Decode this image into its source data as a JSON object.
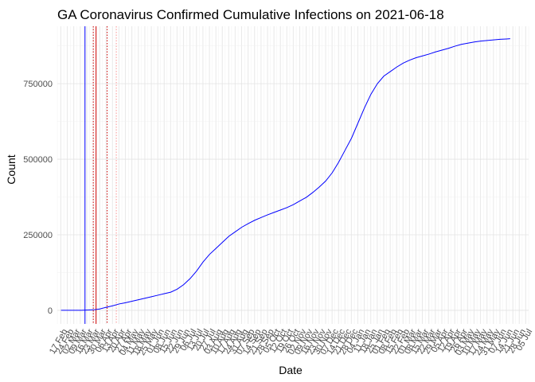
{
  "chart_data": {
    "type": "line",
    "title": "GA Coronavirus Confirmed Cumulative Infections on 2021-06-18",
    "xlabel": "Date",
    "ylabel": "Count",
    "x_range": [
      "2020-02-13",
      "2021-07-08"
    ],
    "ylim": [
      -45000,
      940000
    ],
    "y_ticks": [
      0,
      250000,
      500000,
      750000
    ],
    "y_tick_labels": [
      "0",
      "250000",
      "500000",
      "750000"
    ],
    "x_tick_dates": [
      "2020-02-17",
      "2020-02-24",
      "2020-03-02",
      "2020-03-09",
      "2020-03-16",
      "2020-03-23",
      "2020-03-30",
      "2020-04-06",
      "2020-04-13",
      "2020-04-20",
      "2020-04-27",
      "2020-05-04",
      "2020-05-11",
      "2020-05-18",
      "2020-05-25",
      "2020-06-01",
      "2020-06-08",
      "2020-06-15",
      "2020-06-22",
      "2020-06-29",
      "2020-07-06",
      "2020-07-13",
      "2020-07-20",
      "2020-07-27",
      "2020-08-03",
      "2020-08-10",
      "2020-08-17",
      "2020-08-24",
      "2020-08-31",
      "2020-09-07",
      "2020-09-14",
      "2020-09-21",
      "2020-09-28",
      "2020-10-05",
      "2020-10-12",
      "2020-10-19",
      "2020-10-26",
      "2020-11-02",
      "2020-11-09",
      "2020-11-16",
      "2020-11-23",
      "2020-11-30",
      "2020-12-07",
      "2020-12-14",
      "2020-12-21",
      "2020-12-28",
      "2021-01-04",
      "2021-01-11",
      "2021-01-18",
      "2021-01-25",
      "2021-02-01",
      "2021-02-08",
      "2021-02-15",
      "2021-02-22",
      "2021-03-01",
      "2021-03-08",
      "2021-03-15",
      "2021-03-22",
      "2021-03-29",
      "2021-04-05",
      "2021-04-12",
      "2021-04-19",
      "2021-04-26",
      "2021-05-03",
      "2021-05-10",
      "2021-05-17",
      "2021-05-24",
      "2021-05-31",
      "2021-06-07",
      "2021-06-14",
      "2021-06-21",
      "2021-06-28",
      "2021-07-05"
    ],
    "x_tick_labels": [
      "17 Feb",
      "24 Feb",
      "02 Mar",
      "09 Mar",
      "16 Mar",
      "23 Mar",
      "30 Mar",
      "06 Apr",
      "13 Apr",
      "20 Apr",
      "27 Apr",
      "04 May",
      "11 May",
      "18 May",
      "25 May",
      "01 Jun",
      "08 Jun",
      "15 Jun",
      "22 Jun",
      "29 Jun",
      "06 Jul",
      "13 Jul",
      "20 Jul",
      "27 Jul",
      "03 Aug",
      "10 Aug",
      "17 Aug",
      "24 Aug",
      "31 Aug",
      "07 Sep",
      "14 Sep",
      "21 Sep",
      "28 Sep",
      "05 Oct",
      "12 Oct",
      "19 Oct",
      "26 Oct",
      "02 Nov",
      "09 Nov",
      "16 Nov",
      "23 Nov",
      "30 Nov",
      "07 Dec",
      "14 Dec",
      "21 Dec",
      "28 Dec",
      "04 Jan",
      "11 Jan",
      "18 Jan",
      "25 Jan",
      "01 Feb",
      "08 Feb",
      "15 Feb",
      "22 Feb",
      "01 Mar",
      "08 Mar",
      "15 Mar",
      "22 Mar",
      "29 Mar",
      "05 Apr",
      "12 Apr",
      "19 Apr",
      "26 Apr",
      "03 May",
      "10 May",
      "17 May",
      "24 May",
      "31 May",
      "07 Jun",
      "14 Jun",
      "21 Jun",
      "28 Jun",
      "05 Jul"
    ],
    "series": [
      {
        "color": "#0000ff",
        "points": [
          [
            "2020-02-17",
            0
          ],
          [
            "2020-03-01",
            0
          ],
          [
            "2020-03-10",
            200
          ],
          [
            "2020-03-16",
            700
          ],
          [
            "2020-03-23",
            1600
          ],
          [
            "2020-03-30",
            4500
          ],
          [
            "2020-04-06",
            10000
          ],
          [
            "2020-04-13",
            15000
          ],
          [
            "2020-04-20",
            21000
          ],
          [
            "2020-04-27",
            25000
          ],
          [
            "2020-05-04",
            30000
          ],
          [
            "2020-05-11",
            35000
          ],
          [
            "2020-05-18",
            40000
          ],
          [
            "2020-05-25",
            45000
          ],
          [
            "2020-06-01",
            50000
          ],
          [
            "2020-06-08",
            55000
          ],
          [
            "2020-06-15",
            60000
          ],
          [
            "2020-06-22",
            70000
          ],
          [
            "2020-06-29",
            85000
          ],
          [
            "2020-07-06",
            105000
          ],
          [
            "2020-07-13",
            130000
          ],
          [
            "2020-07-20",
            160000
          ],
          [
            "2020-07-27",
            185000
          ],
          [
            "2020-08-03",
            205000
          ],
          [
            "2020-08-10",
            225000
          ],
          [
            "2020-08-17",
            245000
          ],
          [
            "2020-08-24",
            260000
          ],
          [
            "2020-08-31",
            275000
          ],
          [
            "2020-09-07",
            287000
          ],
          [
            "2020-09-14",
            298000
          ],
          [
            "2020-09-21",
            307000
          ],
          [
            "2020-09-28",
            316000
          ],
          [
            "2020-10-05",
            324000
          ],
          [
            "2020-10-12",
            332000
          ],
          [
            "2020-10-19",
            340000
          ],
          [
            "2020-10-26",
            350000
          ],
          [
            "2020-11-02",
            362000
          ],
          [
            "2020-11-09",
            374000
          ],
          [
            "2020-11-16",
            390000
          ],
          [
            "2020-11-23",
            408000
          ],
          [
            "2020-11-30",
            428000
          ],
          [
            "2020-12-07",
            455000
          ],
          [
            "2020-12-14",
            490000
          ],
          [
            "2020-12-21",
            530000
          ],
          [
            "2020-12-28",
            570000
          ],
          [
            "2021-01-04",
            620000
          ],
          [
            "2021-01-11",
            670000
          ],
          [
            "2021-01-18",
            715000
          ],
          [
            "2021-01-25",
            750000
          ],
          [
            "2021-02-01",
            775000
          ],
          [
            "2021-02-08",
            790000
          ],
          [
            "2021-02-15",
            805000
          ],
          [
            "2021-02-22",
            818000
          ],
          [
            "2021-03-01",
            828000
          ],
          [
            "2021-03-08",
            836000
          ],
          [
            "2021-03-15",
            842000
          ],
          [
            "2021-03-22",
            848000
          ],
          [
            "2021-03-29",
            855000
          ],
          [
            "2021-04-05",
            861000
          ],
          [
            "2021-04-12",
            867000
          ],
          [
            "2021-04-19",
            874000
          ],
          [
            "2021-04-26",
            880000
          ],
          [
            "2021-05-03",
            884000
          ],
          [
            "2021-05-10",
            888000
          ],
          [
            "2021-05-17",
            891000
          ],
          [
            "2021-05-24",
            893000
          ],
          [
            "2021-05-31",
            895000
          ],
          [
            "2021-06-07",
            897000
          ],
          [
            "2021-06-14",
            898000
          ],
          [
            "2021-06-18",
            899000
          ]
        ]
      }
    ],
    "reference_lines": [
      {
        "date": "2020-03-14",
        "color": "#0000ff",
        "style": "solid"
      },
      {
        "date": "2020-03-23",
        "color": "#cc0000",
        "style": "dotted"
      },
      {
        "date": "2020-03-26",
        "color": "#cc0000",
        "style": "solid"
      },
      {
        "date": "2020-04-07",
        "color": "#cc0000",
        "style": "dotted"
      },
      {
        "date": "2020-04-17",
        "color": "#ff9999",
        "style": "dotted"
      }
    ],
    "grid": true
  }
}
